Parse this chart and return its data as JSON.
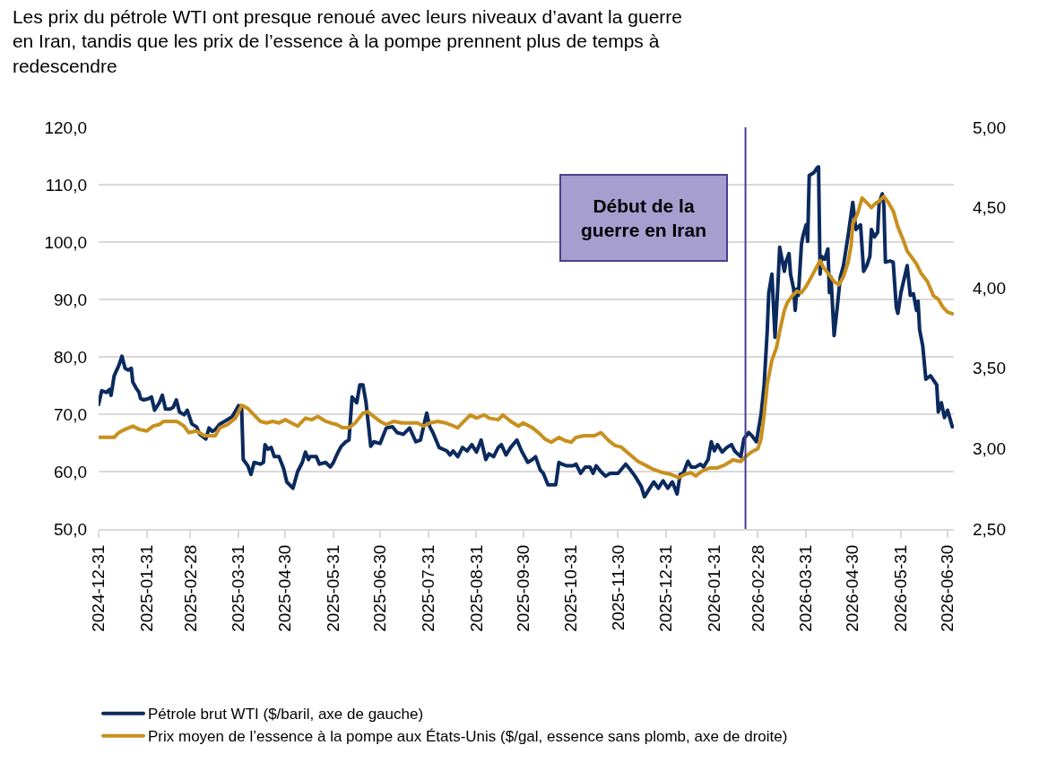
{
  "chart_data": {
    "type": "line",
    "title": "Les prix du pétrole WTI ont presque renoué avec leurs niveaux d’avant la guerre en Iran, tandis que les prix de l’essence à la pompe prennent plus de temps à redescendre",
    "xlim": [
      "2024-12-31",
      "2026-07-04"
    ],
    "xticks": [
      "2024-12-31",
      "2025-01-31",
      "2025-02-28",
      "2025-03-31",
      "2025-04-30",
      "2025-05-31",
      "2025-06-30",
      "2025-07-31",
      "2025-08-31",
      "2025-09-30",
      "2025-10-31",
      "2025-11-30",
      "2025-12-31",
      "2026-01-31",
      "2026-02-28",
      "2026-03-31",
      "2026-04-30",
      "2026-05-31",
      "2026-06-30"
    ],
    "ylim": [
      50,
      120
    ],
    "yticks": [
      {
        "value": 50,
        "label": "50,0"
      },
      {
        "value": 60,
        "label": "60,0"
      },
      {
        "value": 70,
        "label": "70,0"
      },
      {
        "value": 80,
        "label": "80,0"
      },
      {
        "value": 90,
        "label": "90,0"
      },
      {
        "value": 100,
        "label": "100,0"
      },
      {
        "value": 110,
        "label": "110,0"
      },
      {
        "value": 120,
        "label": "120,0"
      }
    ],
    "y2lim": [
      2.5,
      5.0
    ],
    "y2ticks": [
      {
        "value": 2.5,
        "label": "2,50"
      },
      {
        "value": 3.0,
        "label": "3,00"
      },
      {
        "value": 3.5,
        "label": "3,50"
      },
      {
        "value": 4.0,
        "label": "4,00"
      },
      {
        "value": 4.5,
        "label": "4,50"
      },
      {
        "value": 5.0,
        "label": "5,00"
      }
    ],
    "grid": "y",
    "legend": "bottom",
    "ref_lines": [
      {
        "axis": "x",
        "value": "2026-02-20",
        "label": "Début de la guerre en Iran",
        "color": "#4b3f8f"
      }
    ],
    "series": [
      {
        "name": "Pétrole brut WTI ($/baril, axe de gauche)",
        "color": "#0b2a5e",
        "x": [
          "2024-12-31",
          "2025-01-02",
          "2025-01-05",
          "2025-01-07",
          "2025-01-08",
          "2025-01-10",
          "2025-01-13",
          "2025-01-15",
          "2025-01-17",
          "2025-01-19",
          "2025-01-21",
          "2025-01-22",
          "2025-01-24",
          "2025-01-26",
          "2025-01-27",
          "2025-01-29",
          "2025-02-01",
          "2025-02-03",
          "2025-02-05",
          "2025-02-08",
          "2025-02-10",
          "2025-02-12",
          "2025-02-15",
          "2025-02-17",
          "2025-02-19",
          "2025-02-21",
          "2025-02-24",
          "2025-02-26",
          "2025-03-01",
          "2025-03-04",
          "2025-03-06",
          "2025-03-10",
          "2025-03-12",
          "2025-03-14",
          "2025-03-16",
          "2025-03-19",
          "2025-03-23",
          "2025-03-27",
          "2025-03-31",
          "2025-04-02",
          "2025-04-03",
          "2025-04-06",
          "2025-04-08",
          "2025-04-10",
          "2025-04-14",
          "2025-04-16",
          "2025-04-17",
          "2025-04-19",
          "2025-04-21",
          "2025-04-23",
          "2025-04-26",
          "2025-04-29",
          "2025-05-01",
          "2025-05-05",
          "2025-05-08",
          "2025-05-11",
          "2025-05-13",
          "2025-05-15",
          "2025-05-16",
          "2025-05-20",
          "2025-05-22",
          "2025-05-26",
          "2025-05-29",
          "2025-05-31",
          "2025-06-03",
          "2025-06-05",
          "2025-06-08",
          "2025-06-10",
          "2025-06-12",
          "2025-06-15",
          "2025-06-17",
          "2025-06-19",
          "2025-06-21",
          "2025-06-24",
          "2025-06-26",
          "2025-06-30",
          "2025-07-04",
          "2025-07-08",
          "2025-07-11",
          "2025-07-15",
          "2025-07-19",
          "2025-07-23",
          "2025-07-26",
          "2025-07-30",
          "2025-08-01",
          "2025-08-03",
          "2025-08-07",
          "2025-08-12",
          "2025-08-14",
          "2025-08-16",
          "2025-08-19",
          "2025-08-22",
          "2025-08-25",
          "2025-08-28",
          "2025-08-31",
          "2025-09-03",
          "2025-09-06",
          "2025-09-08",
          "2025-09-11",
          "2025-09-14",
          "2025-09-16",
          "2025-09-19",
          "2025-09-22",
          "2025-09-26",
          "2025-09-29",
          "2025-10-03",
          "2025-10-06",
          "2025-10-08",
          "2025-10-11",
          "2025-10-13",
          "2025-10-16",
          "2025-10-21",
          "2025-10-23",
          "2025-10-25",
          "2025-10-28",
          "2025-11-01",
          "2025-11-03",
          "2025-11-06",
          "2025-11-09",
          "2025-11-12",
          "2025-11-14",
          "2025-11-16",
          "2025-11-19",
          "2025-11-22",
          "2025-11-25",
          "2025-11-30",
          "2025-12-05",
          "2025-12-08",
          "2025-12-11",
          "2025-12-15",
          "2025-12-17",
          "2025-12-20",
          "2025-12-23",
          "2025-12-26",
          "2025-12-29",
          "2026-01-01",
          "2026-01-04",
          "2026-01-07",
          "2026-01-09",
          "2026-01-11",
          "2026-01-14",
          "2026-01-16",
          "2026-01-19",
          "2026-01-22",
          "2026-01-24",
          "2026-01-27",
          "2026-01-29",
          "2026-01-31",
          "2026-02-02",
          "2026-02-05",
          "2026-02-08",
          "2026-02-11",
          "2026-02-13",
          "2026-02-17",
          "2026-02-19",
          "2026-02-22",
          "2026-02-24",
          "2026-02-27",
          "2026-03-02",
          "2026-03-04",
          "2026-03-06",
          "2026-03-07",
          "2026-03-09",
          "2026-03-11",
          "2026-03-13",
          "2026-03-14",
          "2026-03-17",
          "2026-03-18",
          "2026-03-20",
          "2026-03-21",
          "2026-03-23",
          "2026-03-24",
          "2026-03-25",
          "2026-03-26",
          "2026-03-28",
          "2026-03-29",
          "2026-03-31",
          "2026-04-01",
          "2026-04-02",
          "2026-04-05",
          "2026-04-07",
          "2026-04-08",
          "2026-04-09",
          "2026-04-10",
          "2026-04-12",
          "2026-04-14",
          "2026-04-15",
          "2026-04-16",
          "2026-04-18",
          "2026-04-20",
          "2026-04-22",
          "2026-04-24",
          "2026-04-27",
          "2026-04-30",
          "2026-05-02",
          "2026-05-05",
          "2026-05-07",
          "2026-05-09",
          "2026-05-11",
          "2026-05-12",
          "2026-05-14",
          "2026-05-16",
          "2026-05-17",
          "2026-05-19",
          "2026-05-20",
          "2026-05-21",
          "2026-05-24",
          "2026-05-26",
          "2026-05-28",
          "2026-05-29",
          "2026-05-31",
          "2026-06-04",
          "2026-06-06",
          "2026-06-08",
          "2026-06-10",
          "2026-06-11",
          "2026-06-12",
          "2026-06-14",
          "2026-06-16",
          "2026-06-19",
          "2026-06-23",
          "2026-06-24",
          "2026-06-26",
          "2026-06-28",
          "2026-06-30",
          "2026-07-03"
        ],
        "values": [
          71.7,
          74.1,
          73.8,
          74.3,
          73.3,
          76.7,
          78.5,
          80.1,
          78.0,
          77.7,
          78.0,
          75.6,
          74.6,
          73.8,
          72.7,
          72.5,
          72.7,
          73.0,
          70.7,
          72.0,
          73.3,
          70.9,
          70.9,
          71.2,
          72.5,
          70.4,
          69.9,
          70.7,
          68.3,
          67.8,
          66.5,
          65.7,
          67.6,
          67.0,
          67.3,
          68.3,
          68.9,
          69.6,
          71.5,
          70.9,
          62.1,
          61.0,
          59.5,
          61.6,
          61.3,
          61.6,
          64.7,
          63.9,
          64.2,
          62.6,
          62.6,
          60.5,
          58.2,
          57.1,
          60.0,
          61.6,
          63.4,
          62.1,
          62.6,
          62.6,
          61.3,
          61.6,
          60.8,
          61.6,
          63.4,
          64.4,
          65.2,
          65.5,
          73.0,
          72.0,
          75.1,
          75.1,
          72.0,
          64.4,
          65.2,
          64.9,
          67.6,
          67.8,
          66.8,
          66.5,
          67.6,
          65.2,
          65.5,
          70.2,
          67.8,
          66.8,
          64.2,
          63.6,
          62.9,
          63.6,
          62.6,
          64.2,
          63.6,
          64.7,
          63.4,
          65.5,
          62.1,
          63.1,
          62.6,
          64.2,
          64.7,
          62.9,
          64.2,
          65.5,
          63.6,
          61.6,
          62.1,
          62.6,
          60.3,
          59.7,
          57.7,
          57.7,
          61.6,
          61.3,
          61.0,
          61.0,
          61.3,
          59.7,
          60.8,
          60.8,
          59.7,
          61.0,
          60.0,
          59.2,
          59.7,
          59.7,
          61.3,
          60.3,
          59.2,
          57.4,
          55.6,
          56.9,
          58.2,
          57.1,
          58.4,
          57.1,
          58.2,
          56.1,
          59.5,
          59.7,
          61.8,
          60.8,
          60.8,
          61.3,
          60.8,
          62.1,
          65.2,
          63.6,
          64.7,
          63.4,
          64.2,
          64.7,
          63.6,
          62.6,
          65.7,
          66.8,
          66.3,
          65.2,
          69.9,
          75.1,
          84.5,
          91.2,
          94.4,
          83.4,
          93.3,
          99.1,
          94.9,
          96.5,
          98.0,
          94.4,
          91.8,
          88.1,
          91.8,
          90.7,
          99.6,
          101.1,
          103.0,
          100.1,
          111.6,
          112.1,
          112.9,
          113.1,
          94.4,
          97.5,
          97.0,
          98.8,
          91.2,
          93.9,
          83.7,
          88.6,
          93.9,
          95.9,
          101.1,
          106.9,
          102.2,
          103.0,
          94.9,
          95.9,
          97.5,
          102.2,
          100.9,
          101.7,
          106.9,
          108.4,
          106.4,
          96.5,
          96.7,
          96.5,
          88.6,
          87.6,
          91.2,
          95.9,
          90.7,
          91.0,
          88.1,
          89.7,
          84.7,
          81.9,
          76.1,
          76.7,
          75.1,
          70.4,
          72.0,
          69.4,
          70.7,
          67.8
        ]
      },
      {
        "name": "Prix moyen de l’essence à la pompe aux États-Unis ($/gal, essence sans plomb, axe de droite)",
        "color": "#c8901e",
        "axis": "y2",
        "x": [
          "2024-12-31",
          "2025-01-04",
          "2025-01-10",
          "2025-01-13",
          "2025-01-17",
          "2025-01-22",
          "2025-01-26",
          "2025-01-31",
          "2025-02-04",
          "2025-02-08",
          "2025-02-11",
          "2025-02-19",
          "2025-02-21",
          "2025-02-24",
          "2025-02-27",
          "2025-03-04",
          "2025-03-09",
          "2025-03-13",
          "2025-03-16",
          "2025-03-19",
          "2025-03-24",
          "2025-03-29",
          "2025-04-02",
          "2025-04-06",
          "2025-04-10",
          "2025-04-14",
          "2025-04-18",
          "2025-04-22",
          "2025-04-26",
          "2025-04-30",
          "2025-05-04",
          "2025-05-08",
          "2025-05-13",
          "2025-05-17",
          "2025-05-21",
          "2025-05-26",
          "2025-05-29",
          "2025-06-02",
          "2025-06-06",
          "2025-06-10",
          "2025-06-14",
          "2025-06-19",
          "2025-06-22",
          "2025-06-26",
          "2025-06-30",
          "2025-07-04",
          "2025-07-09",
          "2025-07-14",
          "2025-07-18",
          "2025-07-21",
          "2025-07-24",
          "2025-07-28",
          "2025-08-01",
          "2025-08-06",
          "2025-08-11",
          "2025-08-14",
          "2025-08-19",
          "2025-08-22",
          "2025-08-27",
          "2025-08-31",
          "2025-09-05",
          "2025-09-08",
          "2025-09-14",
          "2025-09-17",
          "2025-09-22",
          "2025-09-27",
          "2025-09-30",
          "2025-10-06",
          "2025-10-11",
          "2025-10-14",
          "2025-10-18",
          "2025-10-23",
          "2025-10-27",
          "2025-10-31",
          "2025-11-03",
          "2025-11-08",
          "2025-11-15",
          "2025-11-19",
          "2025-11-24",
          "2025-11-28",
          "2025-12-02",
          "2025-12-08",
          "2025-12-13",
          "2025-12-19",
          "2025-12-23",
          "2025-12-29",
          "2026-01-03",
          "2026-01-08",
          "2026-01-12",
          "2026-01-16",
          "2026-01-19",
          "2026-01-23",
          "2026-01-28",
          "2026-02-02",
          "2026-02-07",
          "2026-02-12",
          "2026-02-17",
          "2026-02-20",
          "2026-02-24",
          "2026-02-28",
          "2026-03-02",
          "2026-03-04",
          "2026-03-06",
          "2026-03-09",
          "2026-03-12",
          "2026-03-14",
          "2026-03-17",
          "2026-03-19",
          "2026-03-22",
          "2026-03-25",
          "2026-03-28",
          "2026-03-31",
          "2026-04-04",
          "2026-04-09",
          "2026-04-11",
          "2026-04-15",
          "2026-04-18",
          "2026-04-21",
          "2026-04-24",
          "2026-04-27",
          "2026-04-29",
          "2026-04-30",
          "2026-05-03",
          "2026-05-06",
          "2026-05-09",
          "2026-05-12",
          "2026-05-15",
          "2026-05-17",
          "2026-05-20",
          "2026-05-23",
          "2026-05-26",
          "2026-05-29",
          "2026-06-01",
          "2026-06-04",
          "2026-06-07",
          "2026-06-10",
          "2026-06-13",
          "2026-06-17",
          "2026-06-21",
          "2026-06-24",
          "2026-06-27",
          "2026-06-30",
          "2026-07-03"
        ],
        "values": [
          3.07,
          3.07,
          3.07,
          3.1,
          3.12,
          3.14,
          3.12,
          3.11,
          3.14,
          3.15,
          3.17,
          3.17,
          3.16,
          3.14,
          3.1,
          3.11,
          3.08,
          3.08,
          3.08,
          3.13,
          3.15,
          3.19,
          3.27,
          3.25,
          3.21,
          3.17,
          3.16,
          3.17,
          3.16,
          3.18,
          3.16,
          3.14,
          3.19,
          3.18,
          3.2,
          3.17,
          3.16,
          3.15,
          3.13,
          3.13,
          3.16,
          3.22,
          3.23,
          3.2,
          3.17,
          3.15,
          3.17,
          3.16,
          3.16,
          3.16,
          3.16,
          3.14,
          3.16,
          3.17,
          3.16,
          3.15,
          3.13,
          3.16,
          3.21,
          3.19,
          3.21,
          3.19,
          3.18,
          3.21,
          3.17,
          3.14,
          3.16,
          3.13,
          3.09,
          3.06,
          3.04,
          3.07,
          3.05,
          3.04,
          3.07,
          3.08,
          3.08,
          3.1,
          3.05,
          3.02,
          3.01,
          2.96,
          2.92,
          2.89,
          2.87,
          2.85,
          2.84,
          2.82,
          2.84,
          2.85,
          2.83,
          2.86,
          2.88,
          2.88,
          2.9,
          2.93,
          2.92,
          2.95,
          2.98,
          3.0,
          3.06,
          3.21,
          3.4,
          3.55,
          3.63,
          3.73,
          3.86,
          3.91,
          3.95,
          3.98,
          3.97,
          4.01,
          4.08,
          4.17,
          4.13,
          4.08,
          4.04,
          4.02,
          4.07,
          4.16,
          4.27,
          4.4,
          4.46,
          4.56,
          4.53,
          4.5,
          4.53,
          4.54,
          4.57,
          4.53,
          4.48,
          4.38,
          4.31,
          4.23,
          4.19,
          4.15,
          4.09,
          4.04,
          3.95,
          3.93,
          3.88,
          3.85,
          3.84
        ]
      }
    ]
  }
}
